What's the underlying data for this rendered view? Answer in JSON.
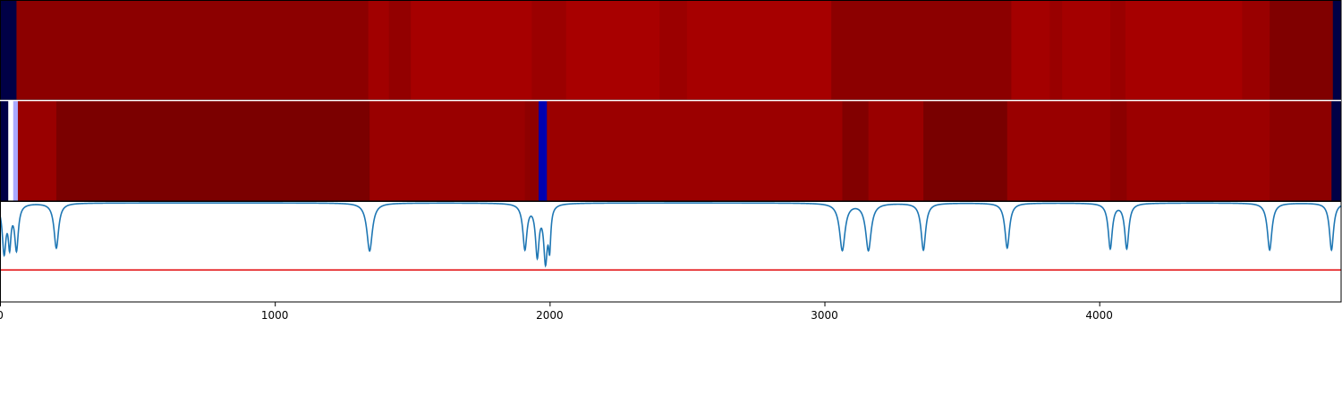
{
  "chart_data": {
    "type": "heatmap",
    "title": "",
    "xlabel": "",
    "ylabel": "",
    "xlim": [
      0,
      4880
    ],
    "grid": false,
    "x_ticks": [
      {
        "value": 0,
        "label": "0"
      },
      {
        "value": 1000,
        "label": "1000"
      },
      {
        "value": 2000,
        "label": "2000"
      },
      {
        "value": 3000,
        "label": "3000"
      },
      {
        "value": 4000,
        "label": "4000"
      }
    ],
    "panels": [
      {
        "name": "",
        "type": "heatmap",
        "segments": [
          {
            "start": 0,
            "end": 60,
            "color": "#000046"
          },
          {
            "start": 60,
            "end": 1340,
            "color": "#8c0000"
          },
          {
            "start": 1340,
            "end": 1415,
            "color": "#a10000"
          },
          {
            "start": 1415,
            "end": 1495,
            "color": "#930000"
          },
          {
            "start": 1495,
            "end": 1935,
            "color": "#a60000"
          },
          {
            "start": 1935,
            "end": 2060,
            "color": "#9b0000"
          },
          {
            "start": 2060,
            "end": 2400,
            "color": "#a80000"
          },
          {
            "start": 2400,
            "end": 2500,
            "color": "#9b0000"
          },
          {
            "start": 2500,
            "end": 3025,
            "color": "#a60000"
          },
          {
            "start": 3025,
            "end": 3680,
            "color": "#8c0000"
          },
          {
            "start": 3680,
            "end": 3820,
            "color": "#a40000"
          },
          {
            "start": 3820,
            "end": 3865,
            "color": "#990000"
          },
          {
            "start": 3865,
            "end": 4040,
            "color": "#a40000"
          },
          {
            "start": 4040,
            "end": 4095,
            "color": "#990000"
          },
          {
            "start": 4095,
            "end": 4520,
            "color": "#a60000"
          },
          {
            "start": 4520,
            "end": 4620,
            "color": "#990000"
          },
          {
            "start": 4620,
            "end": 4850,
            "color": "#800000"
          },
          {
            "start": 4850,
            "end": 4880,
            "color": "#000046"
          }
        ]
      },
      {
        "name": "",
        "type": "heatmap",
        "segments": [
          {
            "start": 0,
            "end": 30,
            "color": "#000046"
          },
          {
            "start": 30,
            "end": 48,
            "color": "#ffffff"
          },
          {
            "start": 48,
            "end": 65,
            "color": "#a9a9ff"
          },
          {
            "start": 65,
            "end": 205,
            "color": "#990000"
          },
          {
            "start": 205,
            "end": 1345,
            "color": "#7b0000"
          },
          {
            "start": 1345,
            "end": 1910,
            "color": "#990000"
          },
          {
            "start": 1910,
            "end": 1960,
            "color": "#8e0000"
          },
          {
            "start": 1960,
            "end": 1990,
            "color": "#0000b0"
          },
          {
            "start": 1990,
            "end": 3065,
            "color": "#9b0000"
          },
          {
            "start": 3065,
            "end": 3160,
            "color": "#820000"
          },
          {
            "start": 3160,
            "end": 3360,
            "color": "#990000"
          },
          {
            "start": 3360,
            "end": 3665,
            "color": "#790000"
          },
          {
            "start": 3665,
            "end": 4040,
            "color": "#990000"
          },
          {
            "start": 4040,
            "end": 4100,
            "color": "#8c0000"
          },
          {
            "start": 4100,
            "end": 4620,
            "color": "#9b0000"
          },
          {
            "start": 4620,
            "end": 4845,
            "color": "#8c0000"
          },
          {
            "start": 4845,
            "end": 4880,
            "color": "#000046"
          }
        ]
      },
      {
        "name": "",
        "type": "line",
        "ylim": [
          0,
          1
        ],
        "threshold": {
          "value": 0.32,
          "color": "#e41a1c"
        },
        "series": [
          {
            "name": "",
            "color": "#1f77b4",
            "baseline": 0.99,
            "dips": [
              {
                "x": 15,
                "depth": 0.48,
                "width": 8
              },
              {
                "x": 35,
                "depth": 0.38,
                "width": 6
              },
              {
                "x": 60,
                "depth": 0.45,
                "width": 8
              },
              {
                "x": 205,
                "depth": 0.45,
                "width": 10
              },
              {
                "x": 1345,
                "depth": 0.48,
                "width": 12
              },
              {
                "x": 1910,
                "depth": 0.45,
                "width": 9
              },
              {
                "x": 1955,
                "depth": 0.5,
                "width": 8
              },
              {
                "x": 1985,
                "depth": 0.55,
                "width": 8
              },
              {
                "x": 2000,
                "depth": 0.38,
                "width": 5
              },
              {
                "x": 3065,
                "depth": 0.47,
                "width": 12
              },
              {
                "x": 3160,
                "depth": 0.47,
                "width": 12
              },
              {
                "x": 3360,
                "depth": 0.47,
                "width": 10
              },
              {
                "x": 3665,
                "depth": 0.45,
                "width": 10
              },
              {
                "x": 4040,
                "depth": 0.45,
                "width": 9
              },
              {
                "x": 4100,
                "depth": 0.45,
                "width": 9
              },
              {
                "x": 4620,
                "depth": 0.47,
                "width": 10
              },
              {
                "x": 4845,
                "depth": 0.47,
                "width": 9
              }
            ]
          }
        ]
      }
    ]
  }
}
